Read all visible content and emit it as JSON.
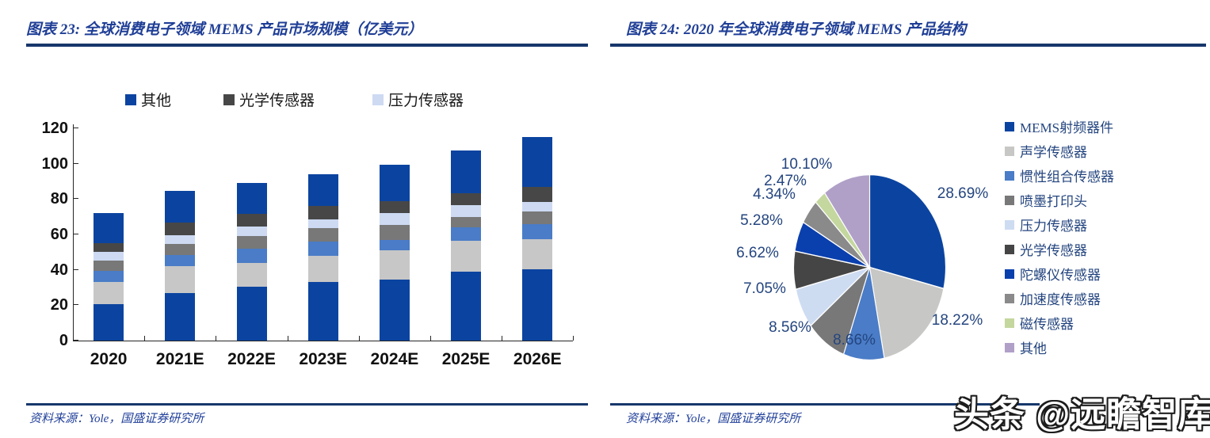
{
  "page": {
    "watermark": "头条 @远瞻智库",
    "background": "#FFFFFF"
  },
  "figure_left": {
    "title": "图表 23:  全球消费电子领域 MEMS 产品市场规模（亿美元）",
    "source": "资料来源：Yole，国盛证券研究所",
    "accent_color": "#17376B"
  },
  "figure_right": {
    "title": "图表 24:  2020 年全球消费电子领域 MEMS 产品结构",
    "source": "资料来源：Yole，国盛证券研究所",
    "accent_color": "#17376B"
  },
  "chart_data": [
    {
      "type": "bar",
      "stacked": true,
      "title": "全球消费电子领域 MEMS 产品市场规模（亿美元）",
      "xlabel": "",
      "ylabel": "",
      "categories": [
        "2020",
        "2021E",
        "2022E",
        "2023E",
        "2024E",
        "2025E",
        "2026E"
      ],
      "series": [
        {
          "name": "MEMS射频器件",
          "color": "#0B44A0",
          "values": [
            20.5,
            27.0,
            30.5,
            33.0,
            34.5,
            39.0,
            40.5
          ]
        },
        {
          "name": "声学传感器",
          "color": "#C7C7C7",
          "values": [
            12.5,
            15.0,
            13.5,
            15.0,
            16.5,
            17.5,
            17.0
          ]
        },
        {
          "name": "惯性组合传感器",
          "color": "#4A7CC7",
          "values": [
            6.2,
            6.5,
            8.0,
            8.0,
            6.0,
            7.5,
            8.5
          ]
        },
        {
          "name": "喷墨打印头",
          "color": "#787878",
          "values": [
            6.1,
            6.0,
            7.0,
            7.5,
            8.5,
            6.0,
            7.0
          ]
        },
        {
          "name": "压力传感器",
          "color": "#CDDAF2",
          "values": [
            5.0,
            5.0,
            5.5,
            5.0,
            6.5,
            6.5,
            5.5
          ]
        },
        {
          "name": "光学传感器",
          "color": "#474747",
          "values": [
            4.8,
            7.0,
            7.0,
            7.5,
            7.0,
            7.0,
            8.5
          ]
        },
        {
          "name": "其他",
          "color": "#0B44A0",
          "values": [
            16.9,
            18.0,
            17.5,
            18.0,
            20.5,
            24.0,
            28.0
          ]
        }
      ],
      "totals": [
        72,
        84.5,
        89,
        94,
        99.5,
        107.5,
        115
      ],
      "ylim": [
        0,
        120
      ],
      "yticks": [
        0,
        20,
        40,
        60,
        80,
        100,
        120
      ],
      "grid": false,
      "legend": {
        "position": "top",
        "items": [
          {
            "label": "其他",
            "color": "#0B44A0"
          },
          {
            "label": "光学传感器",
            "color": "#474747"
          },
          {
            "label": "压力传感器",
            "color": "#CDDAF2"
          }
        ]
      }
    },
    {
      "type": "pie",
      "title": "2020 年全球消费电子领域 MEMS 产品结构",
      "start_angle": "top",
      "direction": "clockwise",
      "legend_position": "right",
      "slices": [
        {
          "label": "MEMS射频器件",
          "value": 28.69,
          "display": "28.69%",
          "color": "#0B44A0"
        },
        {
          "label": "声学传感器",
          "value": 18.22,
          "display": "18.22%",
          "color": "#C7C7C5"
        },
        {
          "label": "惯性组合传感器",
          "value": 8.66,
          "display": "8.66%",
          "color": "#4A7CC7"
        },
        {
          "label": "喷墨打印头",
          "value": 8.56,
          "display": "8.56%",
          "color": "#787878"
        },
        {
          "label": "压力传感器",
          "value": 7.05,
          "display": "7.05%",
          "color": "#CEDCF2"
        },
        {
          "label": "光学传感器",
          "value": 6.62,
          "display": "6.62%",
          "color": "#454545"
        },
        {
          "label": "陀螺仪传感器",
          "value": 5.28,
          "display": "5.28%",
          "color": "#0A3FAE"
        },
        {
          "label": "加速度传感器",
          "value": 4.34,
          "display": "4.34%",
          "color": "#8A8A8A"
        },
        {
          "label": "磁传感器",
          "value": 2.47,
          "display": "2.47%",
          "color": "#C4D79E"
        },
        {
          "label": "其他",
          "value": 10.1,
          "display": "10.10%",
          "color": "#B0A0C8"
        }
      ]
    }
  ]
}
